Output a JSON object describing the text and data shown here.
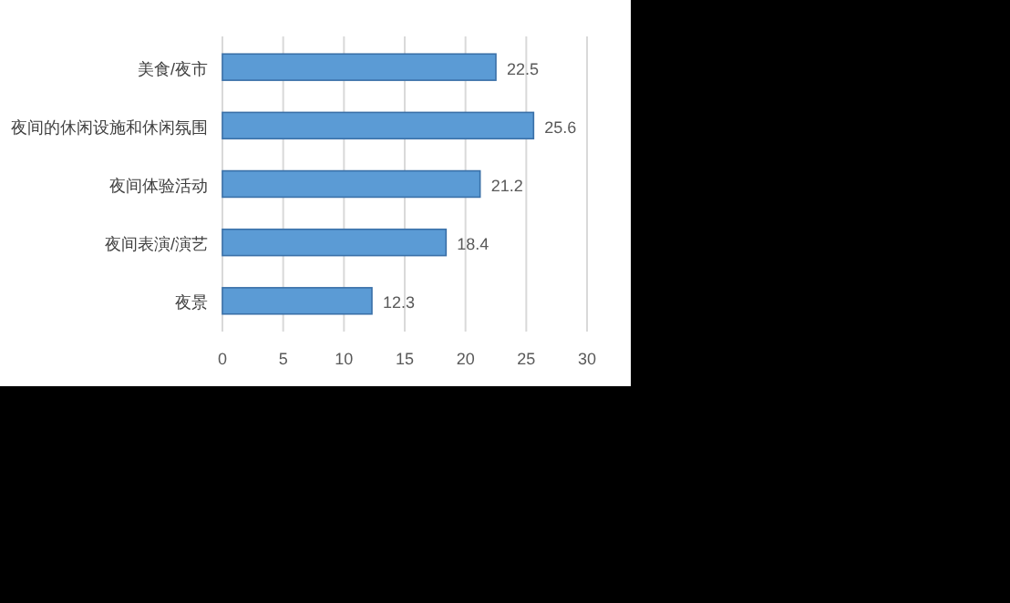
{
  "chart_data": {
    "type": "bar",
    "orientation": "horizontal",
    "categories": [
      "美食/夜市",
      "夜间的休闲设施和休闲氛围",
      "夜间体验活动",
      "夜间表演/演艺",
      "夜景"
    ],
    "values": [
      22.5,
      25.6,
      21.2,
      18.4,
      12.3
    ],
    "color": "#5b9bd5",
    "xlim": [
      0,
      30
    ],
    "xticks": [
      0,
      5,
      10,
      15,
      20,
      25,
      30
    ],
    "grid": "x",
    "data_labels": true
  }
}
